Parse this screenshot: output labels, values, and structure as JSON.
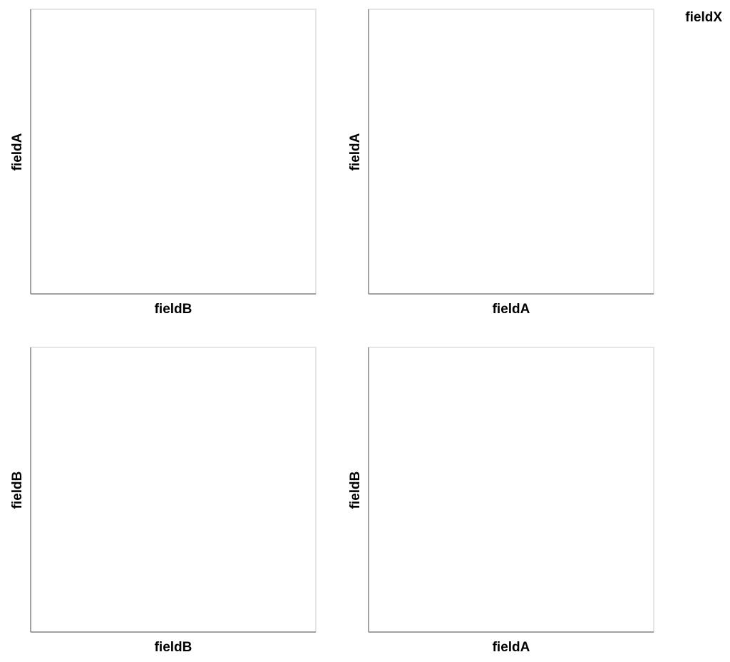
{
  "chart_data": {
    "type": "scatter",
    "layout": "scatter-matrix",
    "legend": {
      "title": "fieldX",
      "placement": "top-right"
    },
    "grid": false,
    "panels": [
      {
        "xlabel": "fieldB",
        "ylabel": "fieldA",
        "points": []
      },
      {
        "xlabel": "fieldA",
        "ylabel": "fieldA",
        "points": []
      },
      {
        "xlabel": "fieldB",
        "ylabel": "fieldB",
        "points": []
      },
      {
        "xlabel": "fieldA",
        "ylabel": "fieldB",
        "points": []
      }
    ]
  },
  "colors": {
    "frame": "#dddddd",
    "axis": "#888888",
    "text": "#000000"
  }
}
